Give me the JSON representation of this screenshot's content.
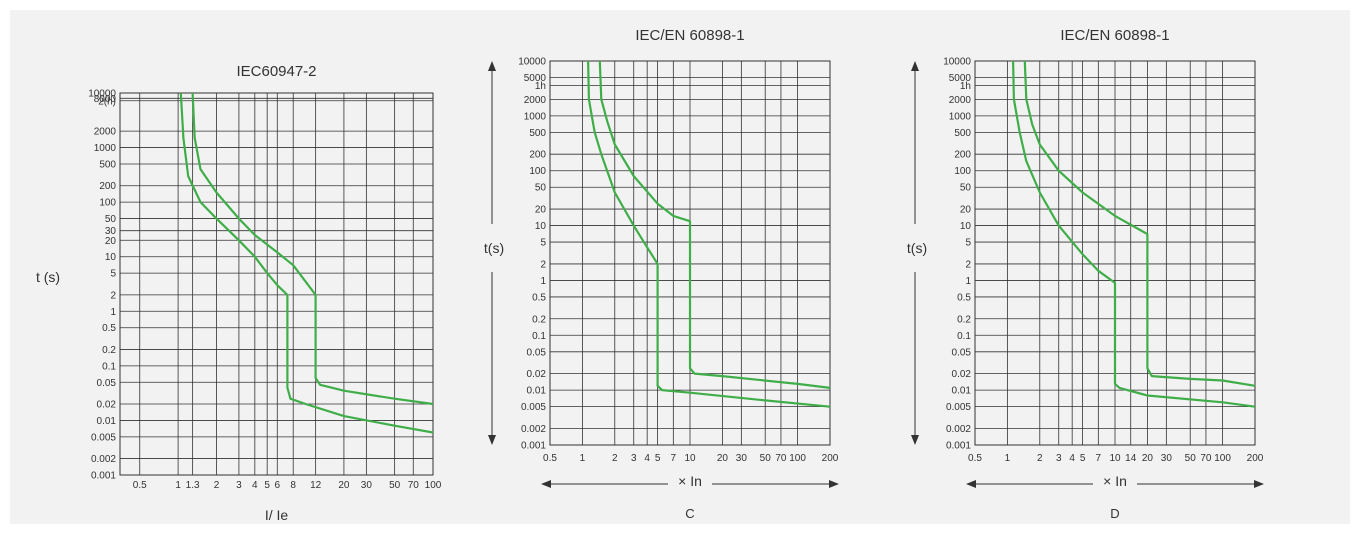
{
  "colors": {
    "panel": "#f2f2f2",
    "grid": "#333333",
    "curve": "#3fae49",
    "text": "#333333"
  },
  "chart_data": [
    {
      "type": "line",
      "title": "IEC60947-2",
      "xlabel": "I/ Ie",
      "ylabel": "t (s)",
      "subtitle": "",
      "x_scale": "log",
      "y_scale": "log",
      "xlim": [
        0.35,
        100
      ],
      "ylim": [
        0.001,
        10000
      ],
      "x_ticks": [
        {
          "v": 0.5,
          "label": "0.5"
        },
        {
          "v": 1,
          "label": "1"
        },
        {
          "v": 1.3,
          "label": "1.3"
        },
        {
          "v": 2,
          "label": "2"
        },
        {
          "v": 3,
          "label": "3"
        },
        {
          "v": 4,
          "label": "4"
        },
        {
          "v": 5,
          "label": "5"
        },
        {
          "v": 6,
          "label": "6"
        },
        {
          "v": 8,
          "label": "8"
        },
        {
          "v": 12,
          "label": "12"
        },
        {
          "v": 20,
          "label": "20"
        },
        {
          "v": 30,
          "label": "30"
        },
        {
          "v": 50,
          "label": "50"
        },
        {
          "v": 70,
          "label": "70"
        },
        {
          "v": 100,
          "label": "100"
        }
      ],
      "y_ticks": [
        {
          "v": 10000,
          "label": "10000"
        },
        {
          "v": 8000,
          "label": "8000"
        },
        {
          "v": 7200,
          "label": "2(h)"
        },
        {
          "v": 2000,
          "label": "2000"
        },
        {
          "v": 1000,
          "label": "1000"
        },
        {
          "v": 500,
          "label": "500"
        },
        {
          "v": 200,
          "label": "200"
        },
        {
          "v": 100,
          "label": "100"
        },
        {
          "v": 50,
          "label": "50"
        },
        {
          "v": 30,
          "label": "30"
        },
        {
          "v": 20,
          "label": "20"
        },
        {
          "v": 10,
          "label": "10"
        },
        {
          "v": 5,
          "label": "5"
        },
        {
          "v": 2,
          "label": "2"
        },
        {
          "v": 1,
          "label": "1"
        },
        {
          "v": 0.5,
          "label": "0.5"
        },
        {
          "v": 0.2,
          "label": "0.2"
        },
        {
          "v": 0.1,
          "label": "0.1"
        },
        {
          "v": 0.05,
          "label": "0.05"
        },
        {
          "v": 0.02,
          "label": "0.02"
        },
        {
          "v": 0.01,
          "label": "0.01"
        },
        {
          "v": 0.005,
          "label": "0.005"
        },
        {
          "v": 0.002,
          "label": "0.002"
        },
        {
          "v": 0.001,
          "label": "0.001"
        }
      ],
      "grid": true,
      "series": [
        {
          "points": [
            [
              1.05,
              10000
            ],
            [
              1.1,
              1500
            ],
            [
              1.2,
              300
            ],
            [
              1.5,
              100
            ],
            [
              2,
              50
            ],
            [
              3,
              20
            ],
            [
              4,
              10
            ],
            [
              5,
              5
            ],
            [
              6,
              3
            ],
            [
              7.2,
              2
            ],
            [
              7.2,
              0.04
            ],
            [
              7.6,
              0.025
            ],
            [
              10,
              0.02
            ],
            [
              20,
              0.012
            ],
            [
              50,
              0.008
            ],
            [
              100,
              0.006
            ]
          ]
        },
        {
          "points": [
            [
              1.3,
              10000
            ],
            [
              1.35,
              1500
            ],
            [
              1.5,
              400
            ],
            [
              2,
              150
            ],
            [
              3,
              50
            ],
            [
              4,
              25
            ],
            [
              6,
              12
            ],
            [
              8,
              7
            ],
            [
              12,
              2
            ],
            [
              12,
              0.06
            ],
            [
              13,
              0.045
            ],
            [
              20,
              0.035
            ],
            [
              50,
              0.025
            ],
            [
              100,
              0.02
            ]
          ]
        }
      ]
    },
    {
      "type": "line",
      "title": "IEC/EN 60898-1",
      "xlabel": "× In",
      "ylabel": "t(s)",
      "subtitle": "C",
      "x_scale": "log",
      "y_scale": "log",
      "xlim": [
        0.5,
        200
      ],
      "ylim": [
        0.001,
        10000
      ],
      "x_ticks": [
        {
          "v": 0.5,
          "label": "0.5"
        },
        {
          "v": 1,
          "label": "1"
        },
        {
          "v": 2,
          "label": "2"
        },
        {
          "v": 3,
          "label": "3"
        },
        {
          "v": 4,
          "label": "4"
        },
        {
          "v": 5,
          "label": "5"
        },
        {
          "v": 7,
          "label": "7"
        },
        {
          "v": 10,
          "label": "10"
        },
        {
          "v": 20,
          "label": "20"
        },
        {
          "v": 30,
          "label": "30"
        },
        {
          "v": 50,
          "label": "50"
        },
        {
          "v": 70,
          "label": "70"
        },
        {
          "v": 100,
          "label": "100"
        },
        {
          "v": 200,
          "label": "200"
        }
      ],
      "y_ticks": [
        {
          "v": 10000,
          "label": "10000"
        },
        {
          "v": 5000,
          "label": "5000"
        },
        {
          "v": 3600,
          "label": "1h"
        },
        {
          "v": 2000,
          "label": "2000"
        },
        {
          "v": 1000,
          "label": "1000"
        },
        {
          "v": 500,
          "label": "500"
        },
        {
          "v": 200,
          "label": "200"
        },
        {
          "v": 100,
          "label": "100"
        },
        {
          "v": 50,
          "label": "50"
        },
        {
          "v": 20,
          "label": "20"
        },
        {
          "v": 10,
          "label": "10"
        },
        {
          "v": 5,
          "label": "5"
        },
        {
          "v": 2,
          "label": "2"
        },
        {
          "v": 1,
          "label": "1"
        },
        {
          "v": 0.5,
          "label": "0.5"
        },
        {
          "v": 0.2,
          "label": "0.2"
        },
        {
          "v": 0.1,
          "label": "0.1"
        },
        {
          "v": 0.05,
          "label": "0.05"
        },
        {
          "v": 0.02,
          "label": "0.02"
        },
        {
          "v": 0.01,
          "label": "0.01"
        },
        {
          "v": 0.005,
          "label": "0.005"
        },
        {
          "v": 0.002,
          "label": "0.002"
        },
        {
          "v": 0.001,
          "label": "0.001"
        }
      ],
      "grid": true,
      "series": [
        {
          "points": [
            [
              1.13,
              10000
            ],
            [
              1.15,
              2000
            ],
            [
              1.3,
              500
            ],
            [
              1.5,
              200
            ],
            [
              2,
              40
            ],
            [
              3,
              10
            ],
            [
              4,
              4
            ],
            [
              5,
              2
            ],
            [
              5,
              0.012
            ],
            [
              5.5,
              0.01
            ],
            [
              10,
              0.009
            ],
            [
              50,
              0.0065
            ],
            [
              200,
              0.005
            ]
          ]
        },
        {
          "points": [
            [
              1.45,
              10000
            ],
            [
              1.5,
              2000
            ],
            [
              1.7,
              800
            ],
            [
              2,
              300
            ],
            [
              3,
              80
            ],
            [
              5,
              25
            ],
            [
              7,
              15
            ],
            [
              10,
              12
            ],
            [
              10,
              0.025
            ],
            [
              11,
              0.02
            ],
            [
              20,
              0.018
            ],
            [
              100,
              0.013
            ],
            [
              200,
              0.011
            ]
          ]
        }
      ]
    },
    {
      "type": "line",
      "title": "IEC/EN 60898-1",
      "xlabel": "× In",
      "ylabel": "t(s)",
      "subtitle": "D",
      "x_scale": "log",
      "y_scale": "log",
      "xlim": [
        0.5,
        200
      ],
      "ylim": [
        0.001,
        10000
      ],
      "x_ticks": [
        {
          "v": 0.5,
          "label": "0.5"
        },
        {
          "v": 1,
          "label": "1"
        },
        {
          "v": 2,
          "label": "2"
        },
        {
          "v": 3,
          "label": "3"
        },
        {
          "v": 4,
          "label": "4"
        },
        {
          "v": 5,
          "label": "5"
        },
        {
          "v": 7,
          "label": "7"
        },
        {
          "v": 10,
          "label": "10"
        },
        {
          "v": 14,
          "label": "14"
        },
        {
          "v": 20,
          "label": "20"
        },
        {
          "v": 30,
          "label": "30"
        },
        {
          "v": 50,
          "label": "50"
        },
        {
          "v": 70,
          "label": "70"
        },
        {
          "v": 100,
          "label": "100"
        },
        {
          "v": 200,
          "label": "200"
        }
      ],
      "y_ticks": [
        {
          "v": 10000,
          "label": "10000"
        },
        {
          "v": 5000,
          "label": "5000"
        },
        {
          "v": 3600,
          "label": "1h"
        },
        {
          "v": 2000,
          "label": "2000"
        },
        {
          "v": 1000,
          "label": "1000"
        },
        {
          "v": 500,
          "label": "500"
        },
        {
          "v": 200,
          "label": "200"
        },
        {
          "v": 100,
          "label": "100"
        },
        {
          "v": 50,
          "label": "50"
        },
        {
          "v": 20,
          "label": "20"
        },
        {
          "v": 10,
          "label": "10"
        },
        {
          "v": 5,
          "label": "5"
        },
        {
          "v": 2,
          "label": "2"
        },
        {
          "v": 1,
          "label": "1"
        },
        {
          "v": 0.5,
          "label": "0.5"
        },
        {
          "v": 0.2,
          "label": "0.2"
        },
        {
          "v": 0.1,
          "label": "0.1"
        },
        {
          "v": 0.05,
          "label": "0.05"
        },
        {
          "v": 0.02,
          "label": "0.02"
        },
        {
          "v": 0.01,
          "label": "0.01"
        },
        {
          "v": 0.005,
          "label": "0.005"
        },
        {
          "v": 0.002,
          "label": "0.002"
        },
        {
          "v": 0.001,
          "label": "0.001"
        }
      ],
      "grid": true,
      "series": [
        {
          "points": [
            [
              1.13,
              10000
            ],
            [
              1.15,
              2000
            ],
            [
              1.3,
              500
            ],
            [
              1.5,
              150
            ],
            [
              2,
              40
            ],
            [
              3,
              10
            ],
            [
              5,
              3
            ],
            [
              7,
              1.5
            ],
            [
              10,
              0.9
            ],
            [
              10,
              0.013
            ],
            [
              11,
              0.011
            ],
            [
              20,
              0.008
            ],
            [
              100,
              0.006
            ],
            [
              200,
              0.005
            ]
          ]
        },
        {
          "points": [
            [
              1.45,
              10000
            ],
            [
              1.5,
              2000
            ],
            [
              1.7,
              700
            ],
            [
              2,
              300
            ],
            [
              3,
              100
            ],
            [
              5,
              40
            ],
            [
              10,
              15
            ],
            [
              20,
              7
            ],
            [
              20,
              0.025
            ],
            [
              22,
              0.018
            ],
            [
              50,
              0.016
            ],
            [
              100,
              0.015
            ],
            [
              200,
              0.012
            ]
          ]
        }
      ]
    }
  ]
}
